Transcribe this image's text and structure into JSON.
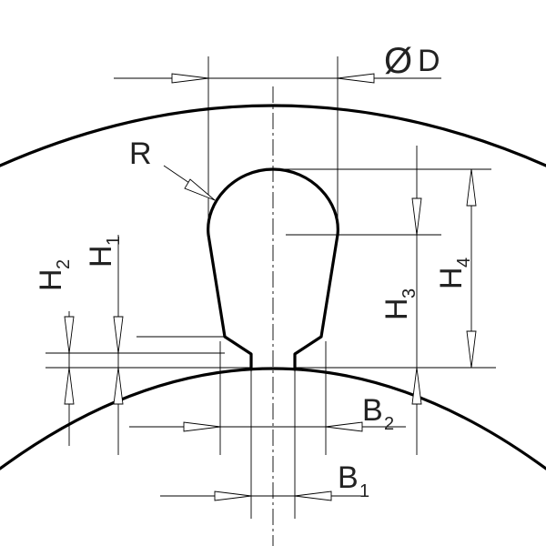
{
  "labels": {
    "diameter_symbol": "Ø",
    "diameter_letter": "D",
    "radius": "R",
    "h1_main": "H",
    "h1_sub": "1",
    "h2_main": "H",
    "h2_sub": "2",
    "h3_main": "H",
    "h3_sub": "3",
    "h4_main": "H",
    "h4_sub": "4",
    "b1_main": "B",
    "b1_sub": "1",
    "b2_main": "B",
    "b2_sub": "2"
  }
}
